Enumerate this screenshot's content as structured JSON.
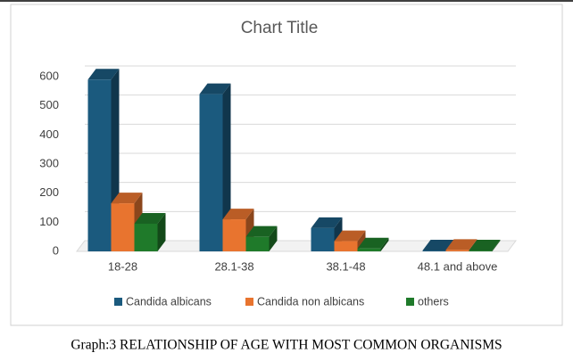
{
  "chart_data": {
    "type": "bar",
    "title": "Chart Title",
    "categories": [
      "18-28",
      "28.1-38",
      "38.1-48",
      "48.1 and above"
    ],
    "series": [
      {
        "name": "Candida albicans",
        "color": "#1b5a7e",
        "values": [
          590,
          540,
          80,
          3
        ]
      },
      {
        "name": "Candida non albicans",
        "color": "#e8742f",
        "values": [
          165,
          110,
          35,
          5
        ]
      },
      {
        "name": "others",
        "color": "#1f7a2a",
        "values": [
          95,
          50,
          10,
          3
        ]
      }
    ],
    "ylim": [
      0,
      600
    ],
    "yticks": [
      0,
      100,
      200,
      300,
      400,
      500,
      600
    ],
    "grid": true,
    "legend": "bottom"
  },
  "caption": "Graph:3 RELATIONSHIP OF AGE WITH MOST COMMON ORGANISMS"
}
